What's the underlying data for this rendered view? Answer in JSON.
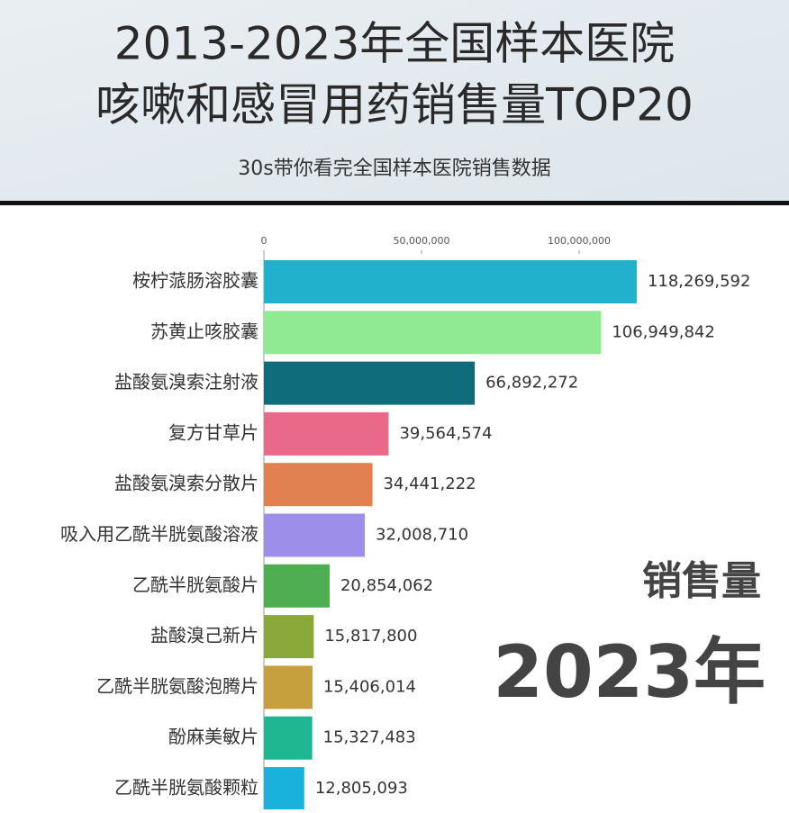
{
  "chart_data": {
    "type": "bar",
    "orientation": "horizontal",
    "title": [
      "2013-2023年全国样本医院",
      "咳嗽和感冒用药销售量TOP20"
    ],
    "subtitle": "30s带你看完全国样本医院销售数据",
    "categories": [
      "桉柠蒎肠溶胶囊",
      "苏黄止咳胶囊",
      "盐酸氨溴索注射液",
      "复方甘草片",
      "盐酸氨溴索分散片",
      "吸入用乙酰半胱氨酸溶液",
      "乙酰半胱氨酸片",
      "盐酸溴己新片",
      "乙酰半胱氨酸泡腾片",
      "酚麻美敏片",
      "乙酰半胱氨酸颗粒"
    ],
    "values": [
      118269592,
      106949842,
      66892272,
      39564574,
      34441222,
      32008710,
      20854062,
      15817800,
      15406014,
      15327483,
      12805093
    ],
    "value_labels": [
      "118,269,592",
      "106,949,842",
      "66,892,272",
      "39,564,574",
      "34,441,222",
      "32,008,710",
      "20,854,062",
      "15,817,800",
      "15,406,014",
      "15,327,483",
      "12,805,093"
    ],
    "colors": [
      "#22b1cd",
      "#90e993",
      "#0f6d7b",
      "#e8698a",
      "#e0814f",
      "#9d8ee9",
      "#4fae52",
      "#8ba83b",
      "#c5a03d",
      "#1fb791",
      "#1ab1dc"
    ],
    "xlim": [
      0,
      120000000
    ],
    "xticks": [
      0,
      {
        "value": 50000000,
        "label": "50,000,000"
      },
      {
        "value": 100000000,
        "label": "100,000,000"
      }
    ],
    "annotations": {
      "metric": "销售量",
      "year": "2023年"
    }
  }
}
